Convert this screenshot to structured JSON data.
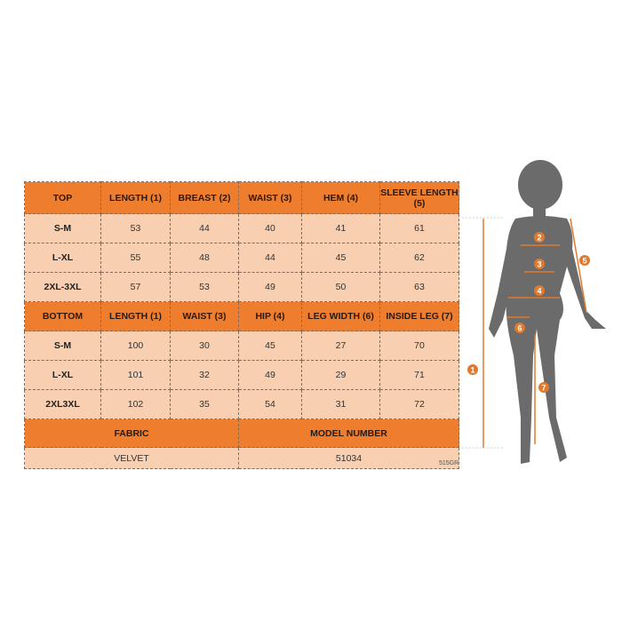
{
  "top": {
    "headers": [
      "TOP",
      "LENGTH (1)",
      "BREAST (2)",
      "WAIST (3)",
      "HEM (4)",
      "SLEEVE LENGTH (5)"
    ],
    "rows": [
      [
        "S-M",
        "53",
        "44",
        "40",
        "41",
        "61"
      ],
      [
        "L-XL",
        "55",
        "48",
        "44",
        "45",
        "62"
      ],
      [
        "2XL-3XL",
        "57",
        "53",
        "49",
        "50",
        "63"
      ]
    ]
  },
  "bottom": {
    "headers": [
      "BOTTOM",
      "LENGTH (1)",
      "WAIST (3)",
      "HIP (4)",
      "LEG WIDTH (6)",
      "INSIDE LEG (7)"
    ],
    "rows": [
      [
        "S-M",
        "100",
        "30",
        "45",
        "27",
        "70"
      ],
      [
        "L-XL",
        "101",
        "32",
        "49",
        "29",
        "71"
      ],
      [
        "2XL3XL",
        "102",
        "35",
        "54",
        "31",
        "72"
      ]
    ]
  },
  "footer": {
    "fabric_label": "FABRIC",
    "model_label": "MODEL NUMBER",
    "fabric": "VELVET",
    "model": "51034"
  },
  "code": "515GR",
  "figure": {
    "markers": [
      "1",
      "2",
      "3",
      "4",
      "5",
      "6",
      "7"
    ]
  },
  "colors": {
    "header": "#ee7d2e",
    "cell": "#f8cfb0",
    "silhouette": "#6b6b6b",
    "marker": "#e07a2e"
  }
}
